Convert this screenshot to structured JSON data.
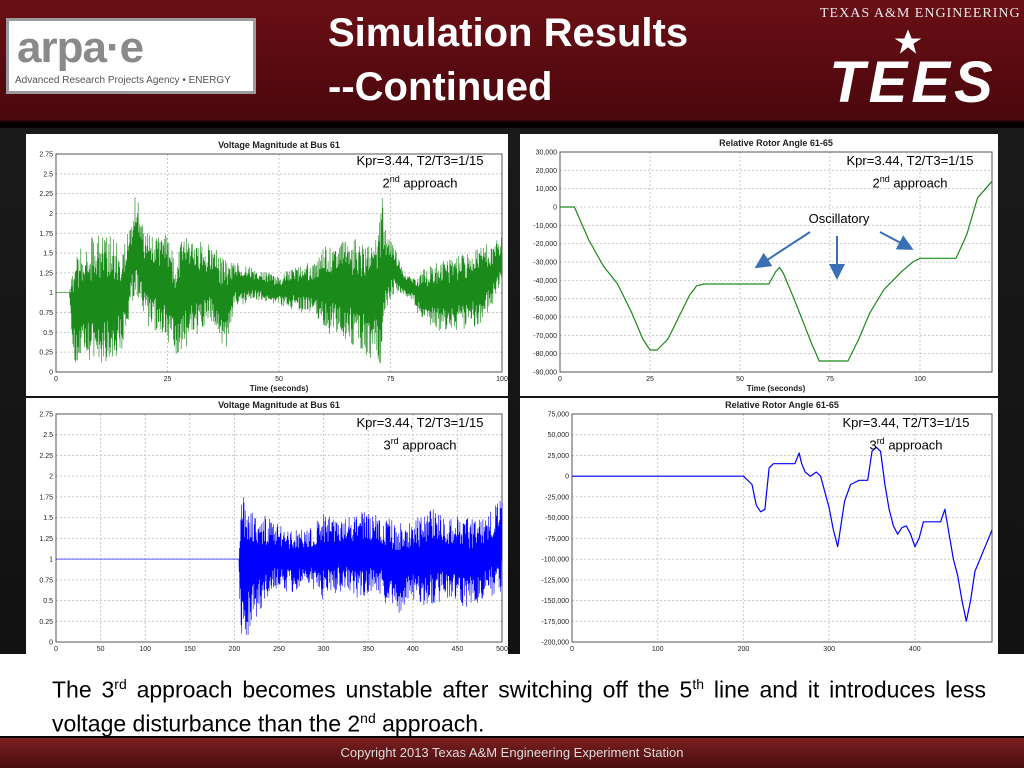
{
  "header": {
    "title_line1": "Simulation Results",
    "title_line2": "--Continued",
    "arpa_logo_text": "arpa·e",
    "arpa_logo_subtitle": "Advanced Research Projects Agency • ENERGY",
    "tees_top_text": "TEXAS A&M ENGINEERING",
    "tees_logo_text": "TEES"
  },
  "annotations": {
    "c1": {
      "line1": "Kpr=3.44, T2/T3=1/15",
      "ordinal": "2",
      "suffix": "nd",
      "rest": " approach"
    },
    "c2": {
      "line1": "Kpr=3.44, T2/T3=1/15",
      "ordinal": "2",
      "suffix": "nd",
      "rest": " approach",
      "oscillatory": "Oscillatory"
    },
    "c3": {
      "line1": "Kpr=3.44, T2/T3=1/15",
      "ordinal": "3",
      "suffix": "rd",
      "rest": "  approach"
    },
    "c4": {
      "line1": "Kpr=3.44, T2/T3=1/15",
      "ordinal": "3",
      "suffix": "rd",
      "rest": "  approach"
    }
  },
  "caption": {
    "p1": "The 3",
    "s1": "rd",
    "p2": " approach becomes unstable after switching off the 5",
    "s2": "th",
    "p3": " line and it introduces less  voltage disturbance than the 2",
    "s3": "nd",
    "p4": " approach."
  },
  "footer": {
    "text": "Copyright 2013   Texas A&M Engineering  Experiment Station"
  },
  "colors": {
    "green": "#1a8a1a",
    "blue": "#0000ff",
    "maroon": "#5a0a10"
  },
  "chart_data": [
    {
      "type": "line",
      "title": "Voltage Magnitude at Bus 61",
      "xlabel": "Time (seconds)",
      "ylabel": "",
      "xlim": [
        0,
        100
      ],
      "ylim": [
        0,
        2.75
      ],
      "xticks": [
        0,
        25,
        50,
        75,
        100
      ],
      "xtick_labels": [
        "0",
        "25",
        "50",
        "75",
        "100"
      ],
      "yticks": [
        0,
        0.25,
        0.5,
        0.75,
        1,
        1.25,
        1.5,
        1.75,
        2,
        2.25,
        2.5,
        2.75
      ],
      "ytick_labels": [
        "0",
        "0.25",
        "0.5",
        "0.75",
        "1",
        "1.25",
        "1.5",
        "1.75",
        "2",
        "2.25",
        "2.5",
        "2.75"
      ],
      "color": "#1a8a1a",
      "envelope": {
        "x": [
          0,
          3,
          4,
          8,
          12,
          15,
          17,
          18,
          20,
          25,
          27,
          28,
          30,
          35,
          38,
          40,
          45,
          50,
          52,
          58,
          60,
          65,
          70,
          72,
          73,
          74,
          76,
          78,
          80,
          82,
          84,
          88,
          92,
          96,
          100
        ],
        "lo": [
          1,
          1,
          0.05,
          0.1,
          0.1,
          0.3,
          0.8,
          1.0,
          0.6,
          0.4,
          0.1,
          0.2,
          0.4,
          0.6,
          0.2,
          0.8,
          0.9,
          0.85,
          0.8,
          0.7,
          0.5,
          0.4,
          0.2,
          0.1,
          0.1,
          0.8,
          1.0,
          0.95,
          0.9,
          0.6,
          0.5,
          0.5,
          0.55,
          0.6,
          1.1
        ],
        "hi": [
          1,
          1,
          1.5,
          1.7,
          1.75,
          1.6,
          2.0,
          2.3,
          1.75,
          1.8,
          1.4,
          1.7,
          1.75,
          1.6,
          1.45,
          1.4,
          1.3,
          1.2,
          1.3,
          1.4,
          1.6,
          1.7,
          1.65,
          1.7,
          2.3,
          1.75,
          1.6,
          1.25,
          1.2,
          1.3,
          1.4,
          1.45,
          1.5,
          1.6,
          1.7
        ]
      }
    },
    {
      "type": "line",
      "title": "Relative Rotor Angle 61-65",
      "xlabel": "Time (seconds)",
      "ylabel": "",
      "xlim": [
        0,
        120
      ],
      "ylim": [
        -90000,
        30000
      ],
      "xticks": [
        0,
        25,
        50,
        75,
        100
      ],
      "xtick_labels": [
        "0",
        "25",
        "50",
        "75",
        "100"
      ],
      "yticks": [
        30000,
        20000,
        10000,
        0,
        -10000,
        -20000,
        -30000,
        -40000,
        -50000,
        -60000,
        -70000,
        -80000,
        -90000
      ],
      "ytick_labels": [
        "30,000",
        "20,000",
        "10,000",
        "0",
        "-10,000",
        "-20,000",
        "-30,000",
        "-40,000",
        "-50,000",
        "-60,000",
        "-70,000",
        "-80,000",
        "-90,000"
      ],
      "color": "#1a8a1a",
      "x": [
        0,
        4,
        8,
        12,
        16,
        20,
        23,
        25,
        27,
        30,
        33,
        36,
        38,
        40,
        50,
        58,
        60,
        61,
        62,
        65,
        68,
        70,
        72,
        75,
        78,
        80,
        83,
        86,
        90,
        95,
        98,
        100,
        104,
        110,
        113,
        116,
        120
      ],
      "y": [
        0,
        0,
        -18000,
        -32000,
        -42000,
        -58000,
        -72000,
        -78000,
        -78000,
        -72000,
        -60000,
        -48000,
        -43000,
        -42000,
        -42000,
        -42000,
        -35000,
        -33000,
        -36000,
        -50000,
        -65000,
        -75000,
        -84000,
        -84000,
        -84000,
        -84000,
        -72000,
        -58000,
        -45000,
        -35000,
        -30000,
        -28000,
        -28000,
        -28000,
        -15000,
        5000,
        14000
      ]
    },
    {
      "type": "line",
      "title": "Voltage Magnitude at Bus 61",
      "xlabel": "Time (seconds)",
      "ylabel": "",
      "xlim": [
        0,
        500
      ],
      "ylim": [
        0,
        2.75
      ],
      "xticks": [
        0,
        50,
        100,
        150,
        200,
        250,
        300,
        350,
        400,
        450,
        500
      ],
      "xtick_labels": [
        "0",
        "50",
        "100",
        "150",
        "200",
        "250",
        "300",
        "350",
        "400",
        "450",
        "500"
      ],
      "yticks": [
        0,
        0.25,
        0.5,
        0.75,
        1,
        1.25,
        1.5,
        1.75,
        2,
        2.25,
        2.5,
        2.75
      ],
      "ytick_labels": [
        "0",
        "0.25",
        "0.5",
        "0.75",
        "1",
        "1.25",
        "1.5",
        "1.75",
        "2",
        "2.25",
        "2.5",
        "2.75"
      ],
      "color": "#0000ff",
      "envelope": {
        "x": [
          0,
          205,
          207,
          210,
          215,
          220,
          230,
          240,
          260,
          270,
          280,
          300,
          320,
          340,
          360,
          380,
          400,
          420,
          440,
          460,
          480,
          500
        ],
        "lo": [
          1,
          1,
          0.1,
          0.05,
          0.05,
          0.2,
          0.4,
          0.6,
          0.6,
          0.6,
          0.7,
          0.5,
          0.6,
          0.5,
          0.6,
          0.3,
          0.5,
          0.4,
          0.5,
          0.4,
          0.5,
          0.6
        ],
        "hi": [
          1,
          1,
          1.9,
          2.0,
          1.7,
          1.6,
          1.55,
          1.5,
          1.4,
          1.4,
          1.35,
          1.55,
          1.5,
          1.6,
          1.55,
          1.5,
          1.45,
          1.65,
          1.55,
          1.5,
          1.5,
          1.75
        ]
      }
    },
    {
      "type": "line",
      "title": "Relative Rotor Angle 61-65",
      "xlabel": "Time (seconds)",
      "ylabel": "",
      "xlim": [
        0,
        490
      ],
      "ylim": [
        -200000,
        75000
      ],
      "xticks": [
        0,
        100,
        200,
        300,
        400
      ],
      "xtick_labels": [
        "0",
        "100",
        "200",
        "300",
        "400"
      ],
      "yticks": [
        75000,
        50000,
        25000,
        0,
        -25000,
        -50000,
        -75000,
        -100000,
        -125000,
        -150000,
        -175000,
        -200000
      ],
      "ytick_labels": [
        "75,000",
        "50,000",
        "25,000",
        "0",
        "-25,000",
        "-50,000",
        "-75,000",
        "-100,000",
        "-125,000",
        "-150,000",
        "-175,000",
        "-200,000"
      ],
      "color": "#0000ff",
      "x": [
        0,
        200,
        210,
        215,
        220,
        225,
        230,
        235,
        260,
        265,
        268,
        272,
        278,
        285,
        290,
        300,
        305,
        310,
        318,
        325,
        335,
        345,
        350,
        355,
        360,
        365,
        370,
        375,
        380,
        385,
        390,
        395,
        400,
        405,
        410,
        430,
        435,
        440,
        445,
        450,
        455,
        460,
        465,
        470,
        480,
        490
      ],
      "y": [
        0,
        0,
        -10000,
        -35000,
        -43000,
        -40000,
        10000,
        15000,
        15000,
        28000,
        15000,
        5000,
        0,
        5000,
        0,
        -38000,
        -65000,
        -85000,
        -30000,
        -10000,
        -5000,
        -5000,
        30000,
        35000,
        30000,
        -10000,
        -40000,
        -60000,
        -70000,
        -62000,
        -60000,
        -70000,
        -85000,
        -75000,
        -55000,
        -55000,
        -40000,
        -70000,
        -100000,
        -120000,
        -150000,
        -175000,
        -150000,
        -115000,
        -90000,
        -65000
      ]
    }
  ]
}
